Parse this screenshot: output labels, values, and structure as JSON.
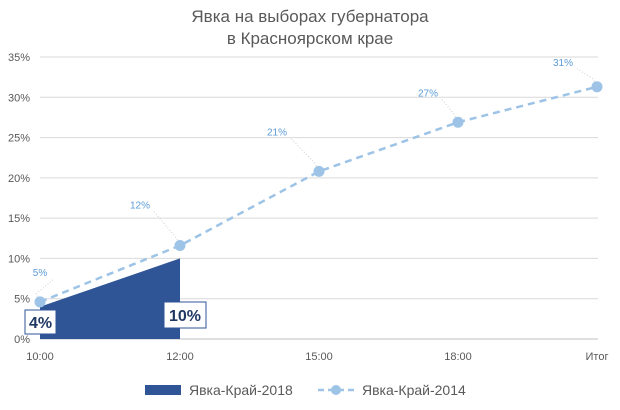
{
  "chart_data": {
    "type": "line",
    "title_line1": "Явка на выборах губернатора",
    "title_line2": "в Красноярском крае",
    "categories": [
      "10:00",
      "12:00",
      "15:00",
      "18:00",
      "Итог"
    ],
    "yticks": [
      "0%",
      "5%",
      "10%",
      "15%",
      "20%",
      "25%",
      "30%",
      "35%"
    ],
    "ylim": [
      0,
      35
    ],
    "grid": true,
    "legend_position": "bottom",
    "series": [
      {
        "name": "Явка-Край-2018",
        "kind": "area",
        "color": "#2f5597",
        "values": [
          4,
          10,
          null,
          null,
          null
        ],
        "labels": [
          "4%",
          "10%",
          null,
          null,
          null
        ]
      },
      {
        "name": "Явка-Край-2014",
        "kind": "line-dashed",
        "color": "#9dc3e6",
        "values": [
          4.6,
          11.6,
          20.8,
          26.9,
          31.3
        ],
        "labels": [
          "5%",
          "12%",
          "21%",
          "27%",
          "31%"
        ]
      }
    ]
  }
}
